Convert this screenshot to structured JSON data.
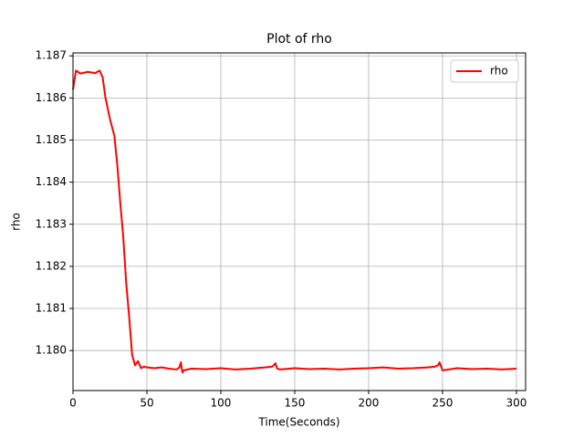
{
  "chart_data": {
    "type": "line",
    "title": "Plot of rho",
    "x_label": "Time(Seconds)",
    "y_label": "rho",
    "x": [
      0,
      2,
      5,
      10,
      15,
      18,
      20,
      22,
      25,
      28,
      30,
      32,
      34,
      36,
      38,
      40,
      42,
      44,
      46,
      48,
      50,
      55,
      60,
      65,
      70,
      72,
      73,
      74,
      75,
      80,
      90,
      100,
      110,
      120,
      130,
      135,
      137,
      138,
      140,
      150,
      160,
      170,
      180,
      190,
      200,
      210,
      220,
      230,
      240,
      245,
      247,
      248,
      250,
      260,
      270,
      280,
      290,
      300
    ],
    "series": [
      {
        "name": "rho",
        "color": "#ff0000",
        "values": [
          1.1862,
          1.18665,
          1.18658,
          1.18662,
          1.18659,
          1.18665,
          1.1865,
          1.186,
          1.1855,
          1.1851,
          1.1844,
          1.1835,
          1.1827,
          1.1816,
          1.1808,
          1.1799,
          1.17965,
          1.17975,
          1.17958,
          1.17962,
          1.1796,
          1.17958,
          1.1796,
          1.17957,
          1.17955,
          1.1796,
          1.17972,
          1.17948,
          1.17953,
          1.17957,
          1.17956,
          1.17958,
          1.17955,
          1.17957,
          1.1796,
          1.17962,
          1.1797,
          1.17958,
          1.17955,
          1.17958,
          1.17956,
          1.17957,
          1.17955,
          1.17957,
          1.17958,
          1.1796,
          1.17957,
          1.17958,
          1.1796,
          1.17962,
          1.17965,
          1.17972,
          1.17953,
          1.17958,
          1.17956,
          1.17957,
          1.17955,
          1.17957
        ]
      }
    ],
    "xlim": [
      0,
      306.2
    ],
    "xticks": [
      0,
      50,
      100,
      150,
      200,
      250,
      300
    ],
    "ylim": [
      1.17905,
      1.18707
    ],
    "yticks": [
      {
        "value": 1.18,
        "label": "1.180"
      },
      1.181,
      1.182,
      1.183,
      1.184,
      1.185,
      1.186,
      1.187
    ],
    "grid": true,
    "legend": "upper right"
  }
}
